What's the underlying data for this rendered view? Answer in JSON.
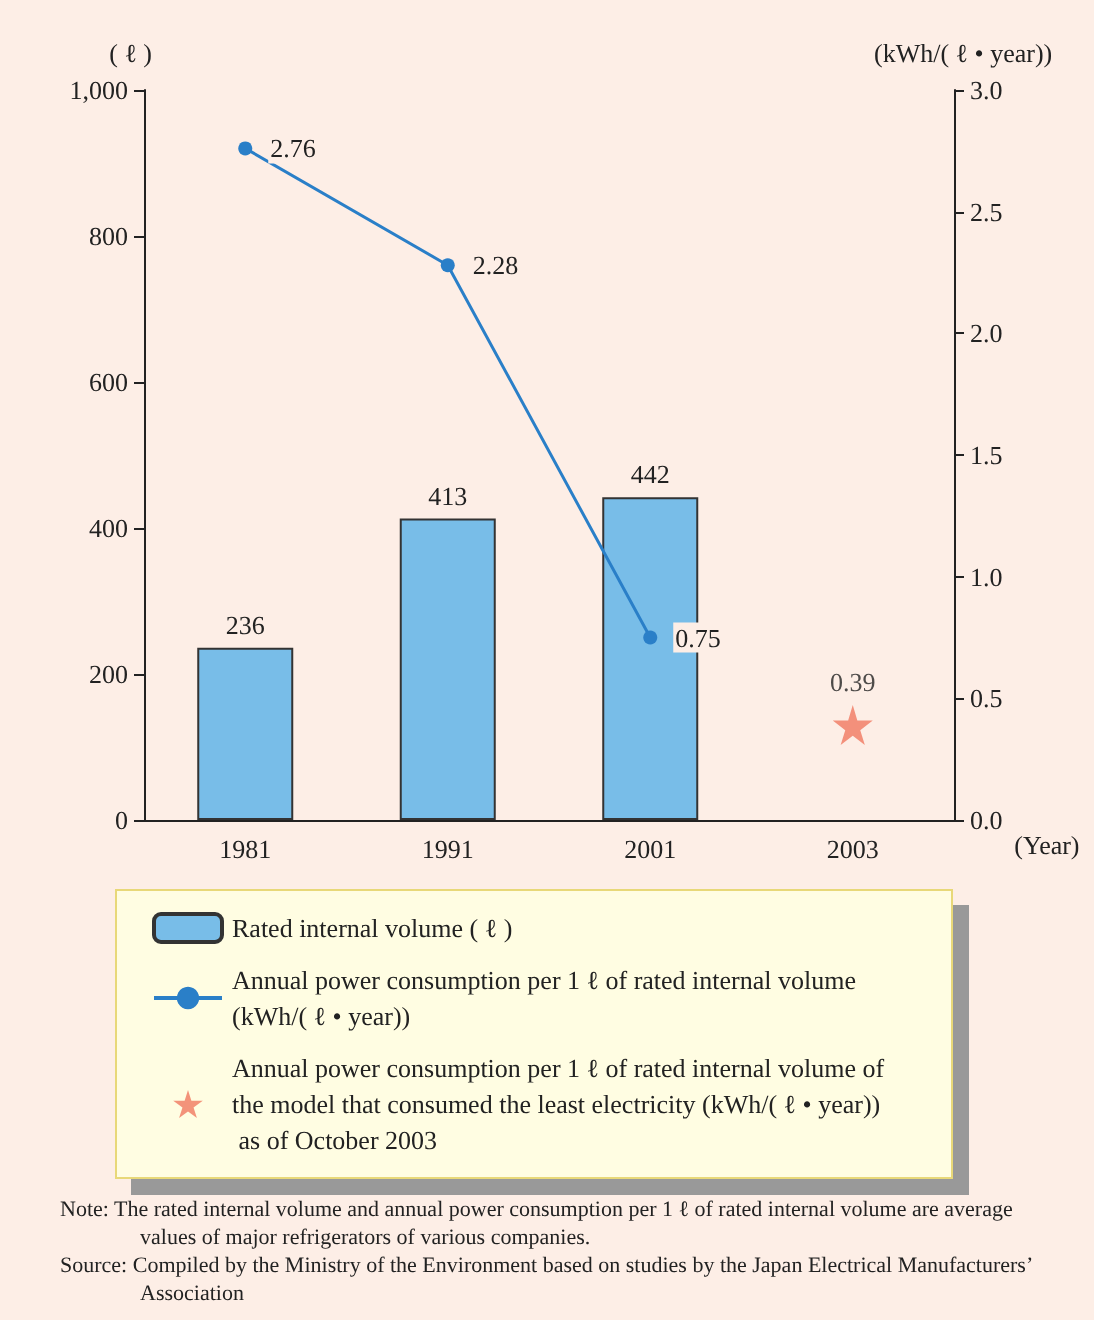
{
  "chart_data": {
    "type": "bar",
    "categories": [
      "1981",
      "1991",
      "2001",
      "2003"
    ],
    "series": [
      {
        "name": "Rated internal volume ( ℓ )",
        "color": "#78bde8",
        "values": [
          236,
          413,
          442,
          null
        ]
      },
      {
        "name": "Annual power consumption per 1 ℓ of rated internal volume (kWh/( ℓ • year))",
        "type": "line",
        "axis": "y2",
        "marker": "circle",
        "color": "#2a7fc8",
        "values": [
          2.76,
          2.28,
          0.75,
          null
        ]
      },
      {
        "name": "Annual power consumption per 1 ℓ of rated internal volume of the model that consumed the least electricity (kWh/( ℓ • year)) as of October 2003",
        "type": "scatter",
        "axis": "y2",
        "marker": "star",
        "color": "#f07860",
        "values": [
          null,
          null,
          null,
          0.39
        ]
      }
    ],
    "ylabel": "( ℓ )",
    "y2label": "(kWh/( ℓ • year))",
    "xlabel": "(Year)",
    "ylim": [
      0,
      1000
    ],
    "yticks": [
      0,
      200,
      400,
      600,
      800,
      {
        "value": 1000,
        "label": "1,000"
      }
    ],
    "y2lim": [
      0,
      3
    ],
    "y2ticks": [
      {
        "value": 0,
        "label": "0.0"
      },
      0.5,
      {
        "value": 1,
        "label": "1.0"
      },
      1.5,
      {
        "value": 2,
        "label": "2.0"
      },
      2.5,
      {
        "value": 3,
        "label": "3.0"
      }
    ],
    "data_labels": true,
    "grid": false,
    "legend": "bottom",
    "annotations": [
      "Note: The rated internal volume and annual power consumption per 1 ℓ of rated internal volume are average values of major refrigerators of various companies.",
      "Source: Compiled by the Ministry of the Environment based on studies by the Japan Electrical Manufacturers’ Association"
    ]
  }
}
